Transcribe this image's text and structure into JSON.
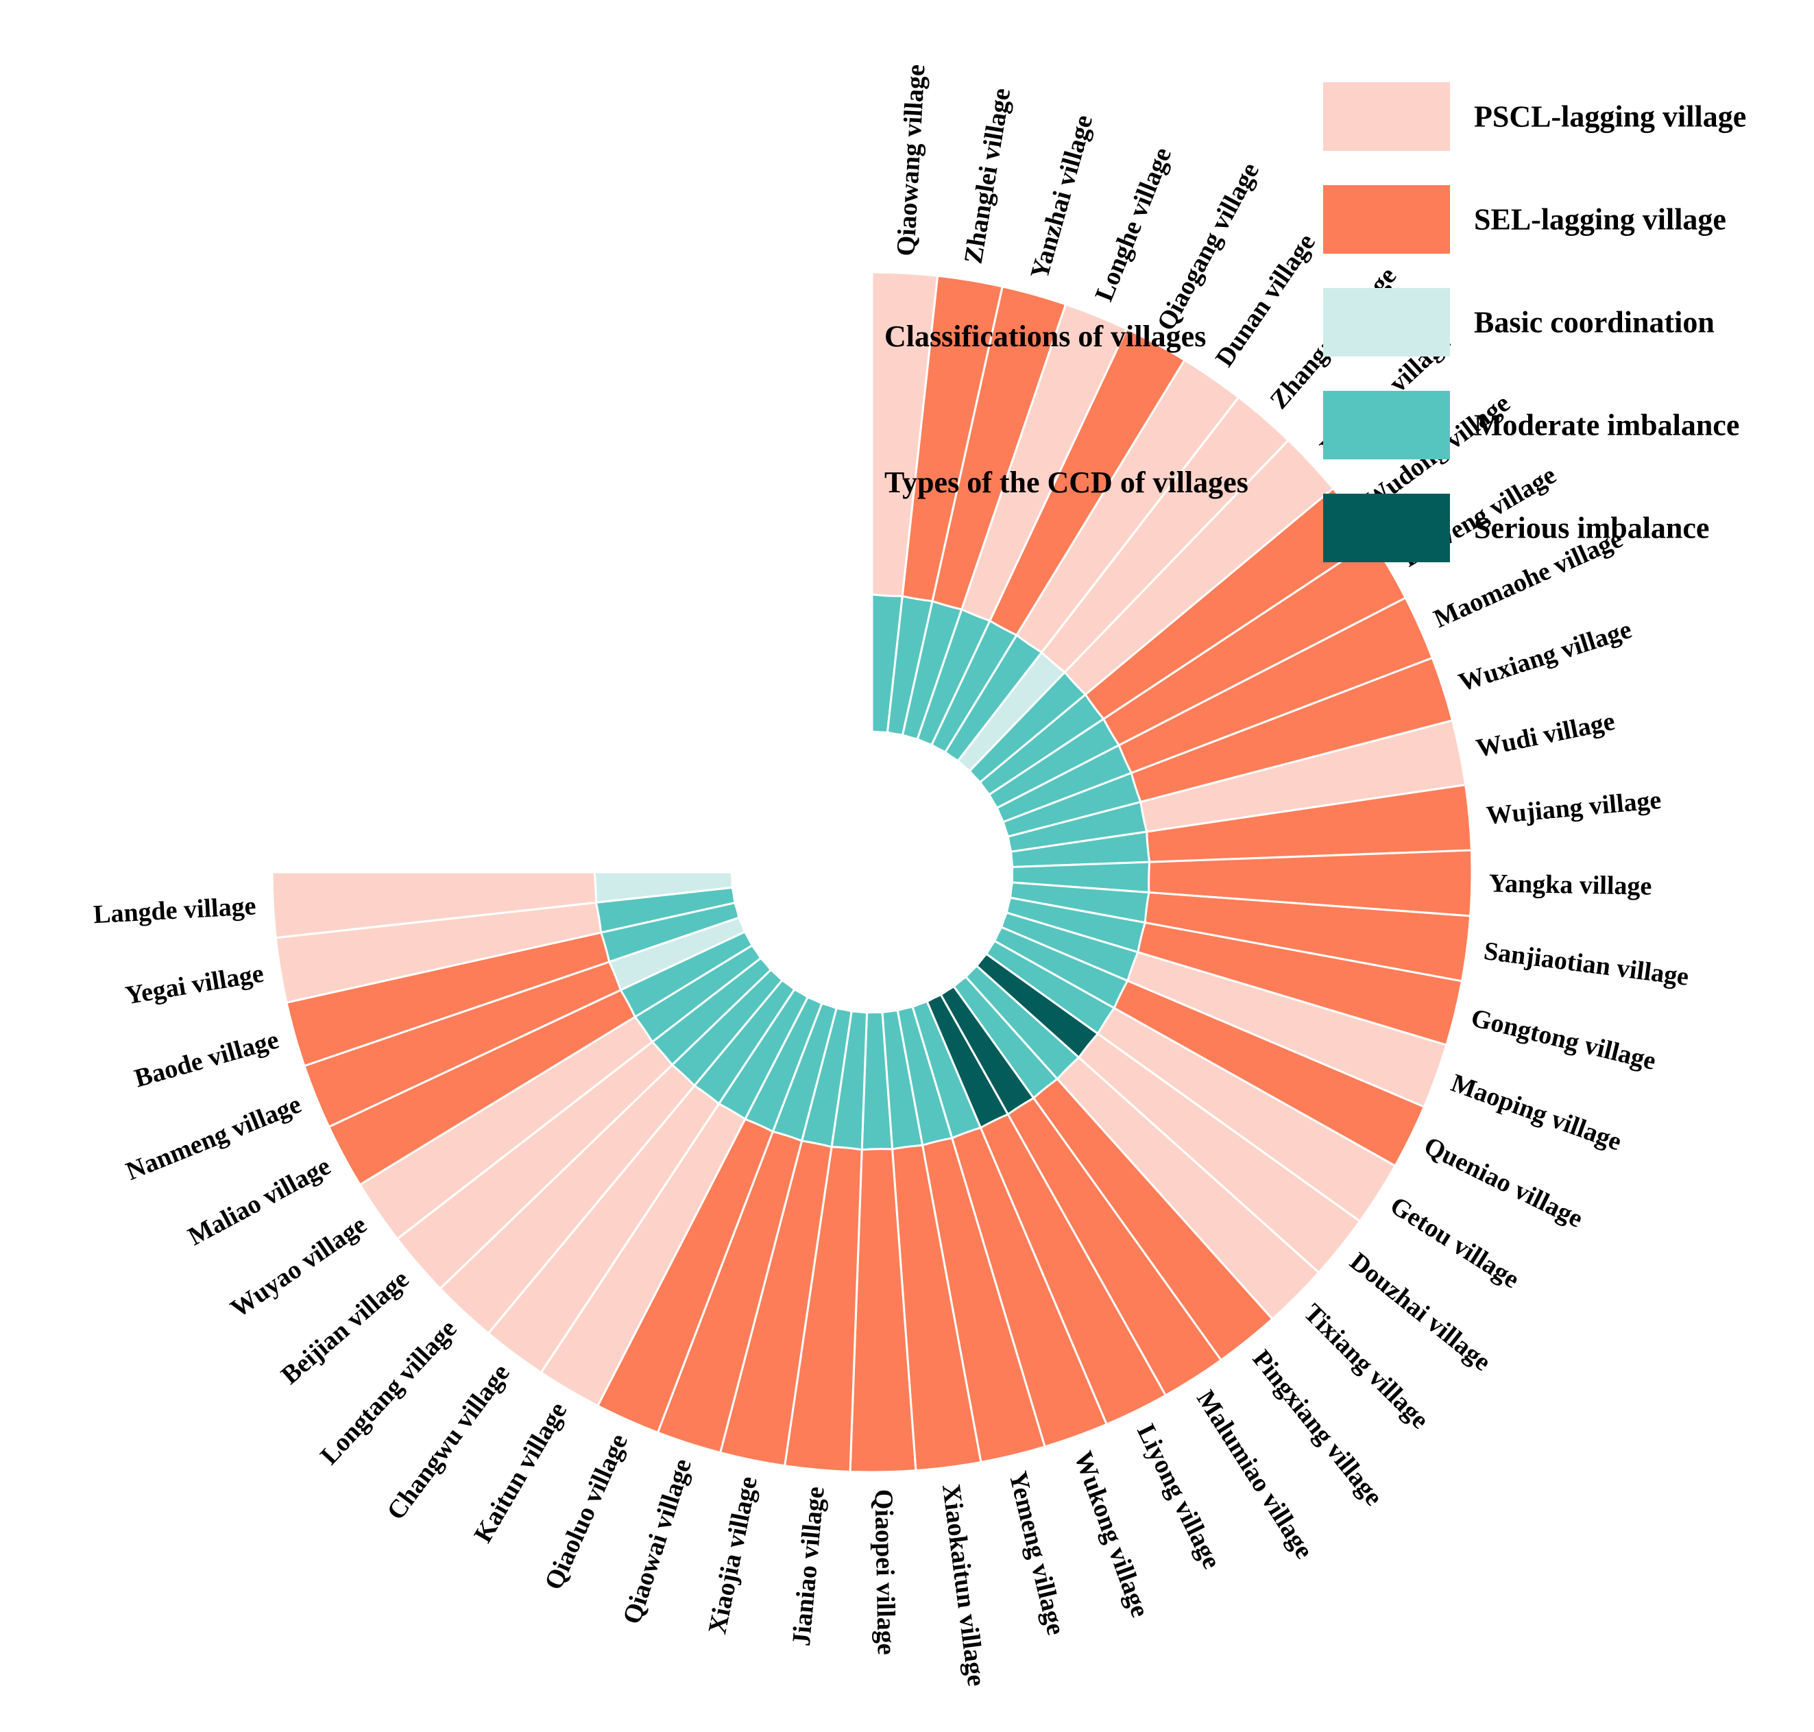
{
  "chart_data": {
    "type": "radial-stacked-ring",
    "ring_labels": {
      "outer": "Classifications of villages",
      "inner": "Types of the CCD of villages"
    },
    "legend": [
      {
        "key": "PSCL",
        "label": "PSCL-lagging village",
        "color": "#FDD3C9"
      },
      {
        "key": "SEL",
        "label": "SEL-lagging village",
        "color": "#FD7D58"
      },
      {
        "key": "BC",
        "label": "Basic coordination",
        "color": "#D0ECEA"
      },
      {
        "key": "MI",
        "label": "Moderate imbalance",
        "color": "#56C5BF"
      },
      {
        "key": "SI",
        "label": "Serious imbalance",
        "color": "#035C5A"
      }
    ],
    "villages": [
      {
        "name": "Qiaowang village",
        "classification": "PSCL",
        "ccd": "MI"
      },
      {
        "name": "Zhanglei village",
        "classification": "SEL",
        "ccd": "MI"
      },
      {
        "name": "Yanzhai village",
        "classification": "SEL",
        "ccd": "MI"
      },
      {
        "name": "Longhe village",
        "classification": "PSCL",
        "ccd": "MI"
      },
      {
        "name": "Qiaogang village",
        "classification": "SEL",
        "ccd": "MI"
      },
      {
        "name": "Dunan village",
        "classification": "PSCL",
        "ccd": "MI"
      },
      {
        "name": "Zhangao village",
        "classification": "PSCL",
        "ccd": "BC"
      },
      {
        "name": "Xinqiao village",
        "classification": "PSCL",
        "ccd": "MI"
      },
      {
        "name": "Wudong village",
        "classification": "SEL",
        "ccd": "MI"
      },
      {
        "name": "Paiweng village",
        "classification": "SEL",
        "ccd": "MI"
      },
      {
        "name": "Maomaohe village",
        "classification": "SEL",
        "ccd": "MI"
      },
      {
        "name": "Wuxiang village",
        "classification": "SEL",
        "ccd": "MI"
      },
      {
        "name": "Wudi village",
        "classification": "PSCL",
        "ccd": "MI"
      },
      {
        "name": "Wujiang village",
        "classification": "SEL",
        "ccd": "MI"
      },
      {
        "name": "Yangka village",
        "classification": "SEL",
        "ccd": "MI"
      },
      {
        "name": "Sanjiaotian village",
        "classification": "SEL",
        "ccd": "MI"
      },
      {
        "name": "Gongtong village",
        "classification": "SEL",
        "ccd": "MI"
      },
      {
        "name": "Maoping village",
        "classification": "PSCL",
        "ccd": "MI"
      },
      {
        "name": "Queniao village",
        "classification": "SEL",
        "ccd": "MI"
      },
      {
        "name": "Getou village",
        "classification": "PSCL",
        "ccd": "MI"
      },
      {
        "name": "Douzhai village",
        "classification": "PSCL",
        "ccd": "SI"
      },
      {
        "name": "Tixiang village",
        "classification": "PSCL",
        "ccd": "MI"
      },
      {
        "name": "Pingxiang village",
        "classification": "SEL",
        "ccd": "MI"
      },
      {
        "name": "Malumiao village",
        "classification": "SEL",
        "ccd": "SI"
      },
      {
        "name": "Liyong village",
        "classification": "SEL",
        "ccd": "SI"
      },
      {
        "name": "Wukong village",
        "classification": "SEL",
        "ccd": "MI"
      },
      {
        "name": "Yemeng village",
        "classification": "SEL",
        "ccd": "MI"
      },
      {
        "name": "Xiaokaitun village",
        "classification": "SEL",
        "ccd": "MI"
      },
      {
        "name": "Qiaopei village",
        "classification": "SEL",
        "ccd": "MI"
      },
      {
        "name": "Jianiao village",
        "classification": "SEL",
        "ccd": "MI"
      },
      {
        "name": "Xiaojia village",
        "classification": "SEL",
        "ccd": "MI"
      },
      {
        "name": "Qiaowai village",
        "classification": "SEL",
        "ccd": "MI"
      },
      {
        "name": "Qiaoluo village",
        "classification": "SEL",
        "ccd": "MI"
      },
      {
        "name": "Kaitun village",
        "classification": "PSCL",
        "ccd": "MI"
      },
      {
        "name": "Changwu village",
        "classification": "PSCL",
        "ccd": "MI"
      },
      {
        "name": "Longtang village",
        "classification": "PSCL",
        "ccd": "MI"
      },
      {
        "name": "Beijian village",
        "classification": "PSCL",
        "ccd": "MI"
      },
      {
        "name": "Wuyao village",
        "classification": "PSCL",
        "ccd": "MI"
      },
      {
        "name": "Maliao village",
        "classification": "SEL",
        "ccd": "MI"
      },
      {
        "name": "Nanmeng village",
        "classification": "SEL",
        "ccd": "BC"
      },
      {
        "name": "Baode village",
        "classification": "SEL",
        "ccd": "MI"
      },
      {
        "name": "Yegai village",
        "classification": "PSCL",
        "ccd": "MI"
      },
      {
        "name": "Langde village",
        "classification": "PSCL",
        "ccd": "BC"
      }
    ]
  }
}
